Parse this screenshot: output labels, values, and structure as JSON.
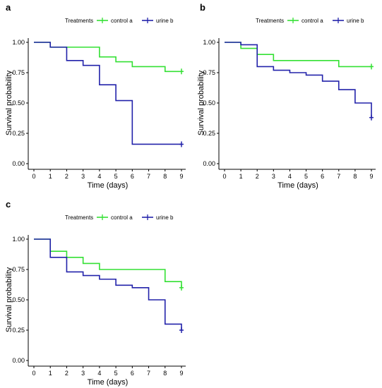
{
  "figure": {
    "colors": {
      "control": "#33e033",
      "urine": "#2222aa",
      "axis": "#000000",
      "text": "#000000"
    }
  },
  "chart_data": [
    {
      "panel_label": "a",
      "type": "line",
      "step": true,
      "legend_title": "Treatments",
      "legend_position": "top",
      "xlabel": "Time (days)",
      "ylabel": "Survival probability",
      "xlim": [
        0,
        9
      ],
      "ylim": [
        0,
        1
      ],
      "x_ticks": [
        "0",
        "1",
        "2",
        "3",
        "4",
        "5",
        "6",
        "7",
        "8",
        "9"
      ],
      "y_ticks": [
        "0.00",
        "0.25",
        "0.50",
        "0.75",
        "1.00"
      ],
      "grid": false,
      "series": [
        {
          "name": "control a",
          "color": "#33e033",
          "points": [
            [
              0,
              1.0
            ],
            [
              1,
              0.96
            ],
            [
              3,
              0.96
            ],
            [
              4,
              0.88
            ],
            [
              5,
              0.84
            ],
            [
              6,
              0.8
            ],
            [
              8,
              0.76
            ],
            [
              9,
              0.76
            ]
          ],
          "censor": [
            9,
            0.76
          ]
        },
        {
          "name": "urine b",
          "color": "#2222aa",
          "points": [
            [
              0,
              1.0
            ],
            [
              1,
              0.96
            ],
            [
              2,
              0.85
            ],
            [
              3,
              0.81
            ],
            [
              4,
              0.65
            ],
            [
              5,
              0.52
            ],
            [
              6,
              0.16
            ],
            [
              9,
              0.16
            ]
          ],
          "censor": [
            9,
            0.16
          ]
        }
      ]
    },
    {
      "panel_label": "b",
      "type": "line",
      "step": true,
      "legend_title": "Treatments",
      "legend_position": "top",
      "xlabel": "Time (days)",
      "ylabel": "Survival probability",
      "xlim": [
        0,
        9
      ],
      "ylim": [
        0,
        1
      ],
      "x_ticks": [
        "0",
        "1",
        "2",
        "3",
        "4",
        "5",
        "6",
        "7",
        "8",
        "9"
      ],
      "y_ticks": [
        "0.00",
        "0.25",
        "0.50",
        "0.75",
        "1.00"
      ],
      "grid": false,
      "series": [
        {
          "name": "control a",
          "color": "#33e033",
          "points": [
            [
              0,
              1.0
            ],
            [
              1,
              0.95
            ],
            [
              2,
              0.9
            ],
            [
              3,
              0.85
            ],
            [
              7,
              0.8
            ],
            [
              9,
              0.8
            ]
          ],
          "censor": [
            9,
            0.8
          ]
        },
        {
          "name": "urine b",
          "color": "#2222aa",
          "points": [
            [
              0,
              1.0
            ],
            [
              1,
              0.98
            ],
            [
              2,
              0.8
            ],
            [
              3,
              0.77
            ],
            [
              4,
              0.75
            ],
            [
              5,
              0.73
            ],
            [
              6,
              0.68
            ],
            [
              7,
              0.61
            ],
            [
              8,
              0.5
            ],
            [
              9,
              0.38
            ]
          ],
          "censor": [
            9,
            0.38
          ]
        }
      ]
    },
    {
      "panel_label": "c",
      "type": "line",
      "step": true,
      "legend_title": "Treatments",
      "legend_position": "top",
      "xlabel": "Time (days)",
      "ylabel": "Survival probability",
      "xlim": [
        0,
        9
      ],
      "ylim": [
        0,
        1
      ],
      "x_ticks": [
        "0",
        "1",
        "2",
        "3",
        "4",
        "5",
        "6",
        "7",
        "8",
        "9"
      ],
      "y_ticks": [
        "0.00",
        "0.25",
        "0.50",
        "0.75",
        "1.00"
      ],
      "grid": false,
      "series": [
        {
          "name": "control a",
          "color": "#33e033",
          "points": [
            [
              0,
              1.0
            ],
            [
              1,
              0.9
            ],
            [
              2,
              0.85
            ],
            [
              3,
              0.8
            ],
            [
              4,
              0.75
            ],
            [
              8,
              0.65
            ],
            [
              9,
              0.6
            ]
          ],
          "censor": [
            9,
            0.6
          ]
        },
        {
          "name": "urine b",
          "color": "#2222aa",
          "points": [
            [
              0,
              1.0
            ],
            [
              1,
              0.85
            ],
            [
              2,
              0.73
            ],
            [
              3,
              0.7
            ],
            [
              4,
              0.67
            ],
            [
              5,
              0.62
            ],
            [
              6,
              0.6
            ],
            [
              7,
              0.5
            ],
            [
              8,
              0.3
            ],
            [
              9,
              0.25
            ]
          ],
          "censor": [
            9,
            0.25
          ]
        }
      ]
    }
  ]
}
